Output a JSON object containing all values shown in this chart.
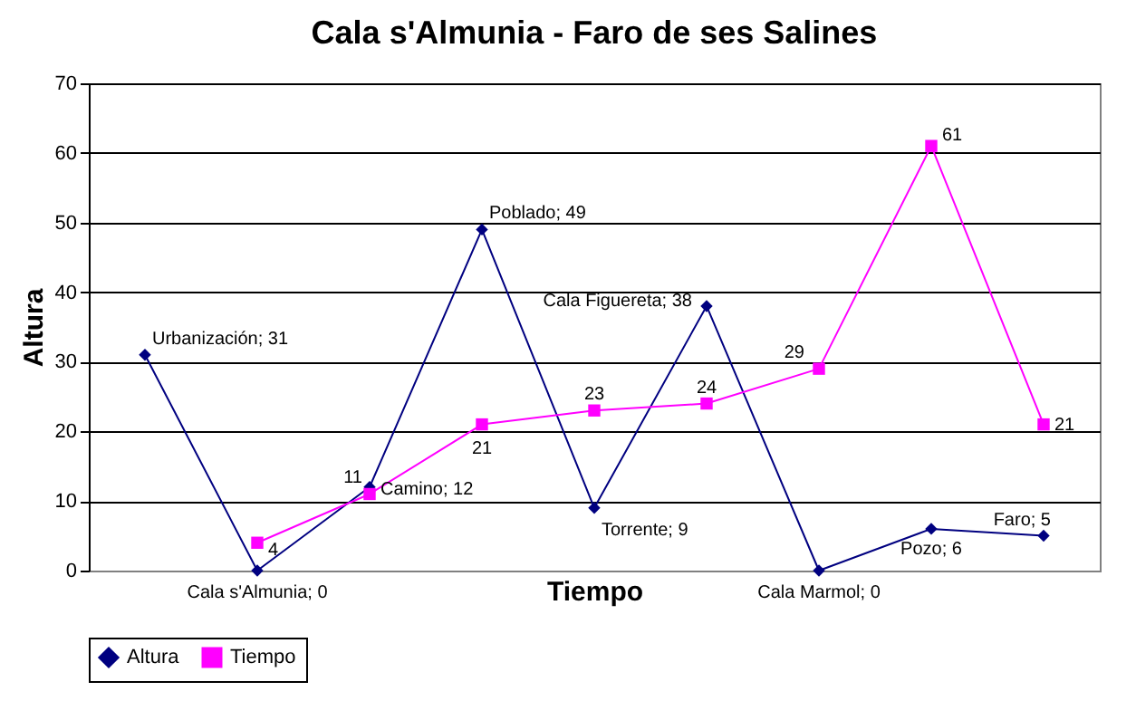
{
  "chart_data": {
    "type": "line",
    "title": "Cala s'Almunia - Faro de ses Salines",
    "xlabel": "Tiempo",
    "ylabel": "Altura",
    "categories": [
      null,
      null,
      null,
      null,
      null,
      null,
      null,
      null,
      null
    ],
    "series": [
      {
        "name": "Altura",
        "color": "#000080",
        "marker": "diamond",
        "values": [
          31,
          0,
          12,
          49,
          9,
          38,
          0,
          6,
          5
        ],
        "value_labels": [
          "Urbanización; 31",
          "Cala s'Almunia; 0",
          "Camino; 12",
          "Poblado; 49",
          "Torrente; 9",
          "Cala Figuereta; 38",
          "Cala Marmol; 0",
          "Pozo; 6",
          "Faro; 5"
        ]
      },
      {
        "name": "Tiempo",
        "color": "#ff00ff",
        "marker": "square",
        "values": [
          null,
          4,
          11,
          21,
          23,
          24,
          29,
          61,
          21
        ],
        "value_labels": [
          null,
          "4",
          "11",
          "21",
          "23",
          "24",
          "29",
          "61",
          "21"
        ]
      }
    ],
    "ylim": [
      0,
      70
    ],
    "yticks": [
      0,
      10,
      20,
      30,
      40,
      50,
      60,
      70
    ],
    "grid": "y",
    "legend": "bottom",
    "tick_labels": "y"
  }
}
